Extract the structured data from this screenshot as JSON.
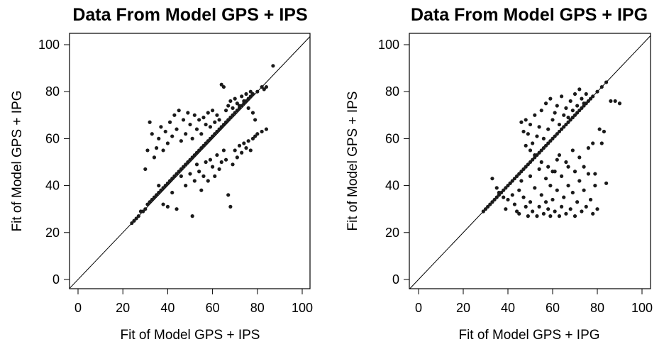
{
  "chart_data": [
    {
      "type": "scatter",
      "title": "Data From Model GPS + IPS",
      "xlabel": "Fit of Model GPS + IPS",
      "ylabel": "Fit of Model GPS + IPG",
      "xlim": [
        0,
        100
      ],
      "ylim": [
        0,
        100
      ],
      "xticks": [
        "0",
        "20",
        "40",
        "60",
        "80",
        "100"
      ],
      "yticks": [
        "0",
        "20",
        "40",
        "60",
        "80",
        "100"
      ],
      "reference_line": "y = x",
      "grid": false,
      "legend": "none",
      "point_color": "#1a1a1a",
      "points": [
        [
          24,
          24
        ],
        [
          25,
          25
        ],
        [
          26,
          26
        ],
        [
          27,
          27
        ],
        [
          28,
          29
        ],
        [
          29,
          29
        ],
        [
          30,
          30
        ],
        [
          31,
          32
        ],
        [
          32,
          33
        ],
        [
          33,
          34
        ],
        [
          34,
          35
        ],
        [
          35,
          36
        ],
        [
          36,
          37
        ],
        [
          37,
          38
        ],
        [
          38,
          39
        ],
        [
          39,
          40
        ],
        [
          40,
          41
        ],
        [
          41,
          42
        ],
        [
          42,
          43
        ],
        [
          43,
          44
        ],
        [
          44,
          45
        ],
        [
          45,
          46
        ],
        [
          46,
          47
        ],
        [
          47,
          48
        ],
        [
          48,
          49
        ],
        [
          49,
          50
        ],
        [
          50,
          51
        ],
        [
          51,
          52
        ],
        [
          52,
          53
        ],
        [
          53,
          54
        ],
        [
          54,
          55
        ],
        [
          55,
          56
        ],
        [
          56,
          57
        ],
        [
          57,
          58
        ],
        [
          58,
          59
        ],
        [
          59,
          60
        ],
        [
          60,
          61
        ],
        [
          61,
          62
        ],
        [
          62,
          63
        ],
        [
          63,
          64
        ],
        [
          64,
          65
        ],
        [
          65,
          66
        ],
        [
          66,
          67
        ],
        [
          67,
          68
        ],
        [
          68,
          69
        ],
        [
          69,
          70
        ],
        [
          70,
          71
        ],
        [
          71,
          72
        ],
        [
          72,
          73
        ],
        [
          73,
          74
        ],
        [
          74,
          75
        ],
        [
          75,
          76
        ],
        [
          76,
          77
        ],
        [
          77,
          78
        ],
        [
          78,
          79
        ],
        [
          80,
          80
        ],
        [
          82,
          82
        ],
        [
          83,
          81
        ],
        [
          84,
          82
        ],
        [
          87,
          91
        ],
        [
          30,
          47
        ],
        [
          31,
          55
        ],
        [
          32,
          67
        ],
        [
          33,
          62
        ],
        [
          34,
          52
        ],
        [
          35,
          56
        ],
        [
          36,
          60
        ],
        [
          37,
          65
        ],
        [
          38,
          55
        ],
        [
          39,
          63
        ],
        [
          40,
          58
        ],
        [
          41,
          67
        ],
        [
          42,
          61
        ],
        [
          43,
          70
        ],
        [
          44,
          64
        ],
        [
          45,
          72
        ],
        [
          46,
          59
        ],
        [
          47,
          68
        ],
        [
          48,
          62
        ],
        [
          49,
          71
        ],
        [
          50,
          66
        ],
        [
          51,
          60
        ],
        [
          52,
          70
        ],
        [
          53,
          64
        ],
        [
          54,
          68
        ],
        [
          55,
          62
        ],
        [
          56,
          69
        ],
        [
          57,
          66
        ],
        [
          58,
          71
        ],
        [
          59,
          65
        ],
        [
          60,
          72
        ],
        [
          61,
          67
        ],
        [
          62,
          70
        ],
        [
          63,
          68
        ],
        [
          64,
          83
        ],
        [
          65,
          82
        ],
        [
          66,
          72
        ],
        [
          67,
          74
        ],
        [
          68,
          76
        ],
        [
          69,
          73
        ],
        [
          70,
          77
        ],
        [
          71,
          75
        ],
        [
          72,
          74
        ],
        [
          73,
          78
        ],
        [
          74,
          76
        ],
        [
          75,
          79
        ],
        [
          76,
          73
        ],
        [
          77,
          80
        ],
        [
          78,
          71
        ],
        [
          79,
          68
        ],
        [
          36,
          40
        ],
        [
          38,
          32
        ],
        [
          40,
          31
        ],
        [
          42,
          37
        ],
        [
          44,
          30
        ],
        [
          46,
          44
        ],
        [
          48,
          40
        ],
        [
          50,
          45
        ],
        [
          51,
          27
        ],
        [
          52,
          42
        ],
        [
          53,
          49
        ],
        [
          54,
          46
        ],
        [
          55,
          38
        ],
        [
          56,
          44
        ],
        [
          57,
          50
        ],
        [
          58,
          42
        ],
        [
          59,
          51
        ],
        [
          60,
          48
        ],
        [
          61,
          44
        ],
        [
          62,
          53
        ],
        [
          63,
          47
        ],
        [
          64,
          50
        ],
        [
          65,
          55
        ],
        [
          66,
          51
        ],
        [
          67,
          36
        ],
        [
          68,
          31
        ],
        [
          69,
          49
        ],
        [
          70,
          55
        ],
        [
          71,
          52
        ],
        [
          72,
          57
        ],
        [
          73,
          54
        ],
        [
          74,
          58
        ],
        [
          75,
          56
        ],
        [
          76,
          59
        ],
        [
          77,
          55
        ],
        [
          78,
          60
        ],
        [
          79,
          61
        ],
        [
          80,
          62
        ],
        [
          82,
          63
        ],
        [
          84,
          64
        ]
      ]
    },
    {
      "type": "scatter",
      "title": "Data From Model GPS + IPG",
      "xlabel": "Fit of Model GPS + IPG",
      "ylabel": "Fit of Model GPS + IPS",
      "xlim": [
        0,
        100
      ],
      "ylim": [
        0,
        100
      ],
      "xticks": [
        "0",
        "20",
        "40",
        "60",
        "80",
        "100"
      ],
      "yticks": [
        "0",
        "20",
        "40",
        "60",
        "80",
        "100"
      ],
      "reference_line": "y = x",
      "grid": false,
      "legend": "none",
      "point_color": "#1a1a1a",
      "points": [
        [
          29,
          29
        ],
        [
          30,
          30
        ],
        [
          31,
          31
        ],
        [
          32,
          32
        ],
        [
          33,
          33
        ],
        [
          34,
          34
        ],
        [
          35,
          35
        ],
        [
          36,
          36
        ],
        [
          37,
          37
        ],
        [
          38,
          38
        ],
        [
          39,
          39
        ],
        [
          40,
          40
        ],
        [
          41,
          41
        ],
        [
          42,
          42
        ],
        [
          43,
          43
        ],
        [
          44,
          44
        ],
        [
          45,
          45
        ],
        [
          46,
          46
        ],
        [
          47,
          47
        ],
        [
          48,
          48
        ],
        [
          49,
          49
        ],
        [
          50,
          50
        ],
        [
          51,
          51
        ],
        [
          52,
          52
        ],
        [
          53,
          53
        ],
        [
          54,
          54
        ],
        [
          55,
          55
        ],
        [
          56,
          56
        ],
        [
          57,
          57
        ],
        [
          58,
          58
        ],
        [
          59,
          59
        ],
        [
          60,
          60
        ],
        [
          61,
          61
        ],
        [
          62,
          62
        ],
        [
          63,
          63
        ],
        [
          64,
          64
        ],
        [
          65,
          65
        ],
        [
          66,
          66
        ],
        [
          67,
          67
        ],
        [
          68,
          68
        ],
        [
          69,
          69
        ],
        [
          70,
          70
        ],
        [
          71,
          71
        ],
        [
          72,
          72
        ],
        [
          73,
          73
        ],
        [
          74,
          74
        ],
        [
          75,
          75
        ],
        [
          76,
          76
        ],
        [
          77,
          77
        ],
        [
          78,
          78
        ],
        [
          80,
          80
        ],
        [
          82,
          82
        ],
        [
          84,
          84
        ],
        [
          86,
          76
        ],
        [
          88,
          76
        ],
        [
          90,
          75
        ],
        [
          81,
          64
        ],
        [
          83,
          63
        ],
        [
          82,
          58
        ],
        [
          84,
          41
        ],
        [
          33,
          43
        ],
        [
          35,
          39
        ],
        [
          36,
          37
        ],
        [
          38,
          35
        ],
        [
          39,
          30
        ],
        [
          40,
          34
        ],
        [
          41,
          41
        ],
        [
          42,
          36
        ],
        [
          43,
          32
        ],
        [
          44,
          29
        ],
        [
          45,
          38
        ],
        [
          45,
          28
        ],
        [
          46,
          42
        ],
        [
          47,
          35
        ],
        [
          48,
          31
        ],
        [
          49,
          27
        ],
        [
          50,
          44
        ],
        [
          50,
          33
        ],
        [
          51,
          29
        ],
        [
          52,
          39
        ],
        [
          53,
          27
        ],
        [
          54,
          47
        ],
        [
          54,
          31
        ],
        [
          55,
          36
        ],
        [
          56,
          28
        ],
        [
          57,
          43
        ],
        [
          57,
          33
        ],
        [
          58,
          30
        ],
        [
          59,
          40
        ],
        [
          59,
          27
        ],
        [
          60,
          46
        ],
        [
          60,
          34
        ],
        [
          61,
          29
        ],
        [
          62,
          51
        ],
        [
          62,
          38
        ],
        [
          63,
          27
        ],
        [
          64,
          44
        ],
        [
          64,
          31
        ],
        [
          65,
          35
        ],
        [
          66,
          28
        ],
        [
          67,
          48
        ],
        [
          67,
          40
        ],
        [
          68,
          30
        ],
        [
          69,
          37
        ],
        [
          70,
          46
        ],
        [
          70,
          27
        ],
        [
          71,
          33
        ],
        [
          72,
          42
        ],
        [
          73,
          29
        ],
        [
          74,
          38
        ],
        [
          75,
          31
        ],
        [
          76,
          45
        ],
        [
          77,
          34
        ],
        [
          78,
          28
        ],
        [
          79,
          40
        ],
        [
          80,
          30
        ],
        [
          46,
          67
        ],
        [
          47,
          63
        ],
        [
          48,
          68
        ],
        [
          49,
          62
        ],
        [
          50,
          66
        ],
        [
          51,
          58
        ],
        [
          52,
          70
        ],
        [
          53,
          61
        ],
        [
          54,
          65
        ],
        [
          55,
          72
        ],
        [
          56,
          60
        ],
        [
          57,
          75
        ],
        [
          58,
          64
        ],
        [
          59,
          77
        ],
        [
          60,
          68
        ],
        [
          61,
          71
        ],
        [
          62,
          74
        ],
        [
          63,
          66
        ],
        [
          64,
          78
        ],
        [
          65,
          70
        ],
        [
          66,
          73
        ],
        [
          67,
          69
        ],
        [
          68,
          76
        ],
        [
          69,
          72
        ],
        [
          70,
          79
        ],
        [
          71,
          74
        ],
        [
          72,
          81
        ],
        [
          73,
          77
        ],
        [
          74,
          75
        ],
        [
          75,
          79
        ],
        [
          48,
          57
        ],
        [
          50,
          55
        ],
        [
          52,
          53
        ],
        [
          55,
          50
        ],
        [
          58,
          48
        ],
        [
          61,
          46
        ],
        [
          63,
          53
        ],
        [
          66,
          50
        ],
        [
          69,
          55
        ],
        [
          72,
          52
        ],
        [
          74,
          48
        ],
        [
          76,
          56
        ],
        [
          78,
          58
        ],
        [
          79,
          45
        ]
      ]
    }
  ]
}
